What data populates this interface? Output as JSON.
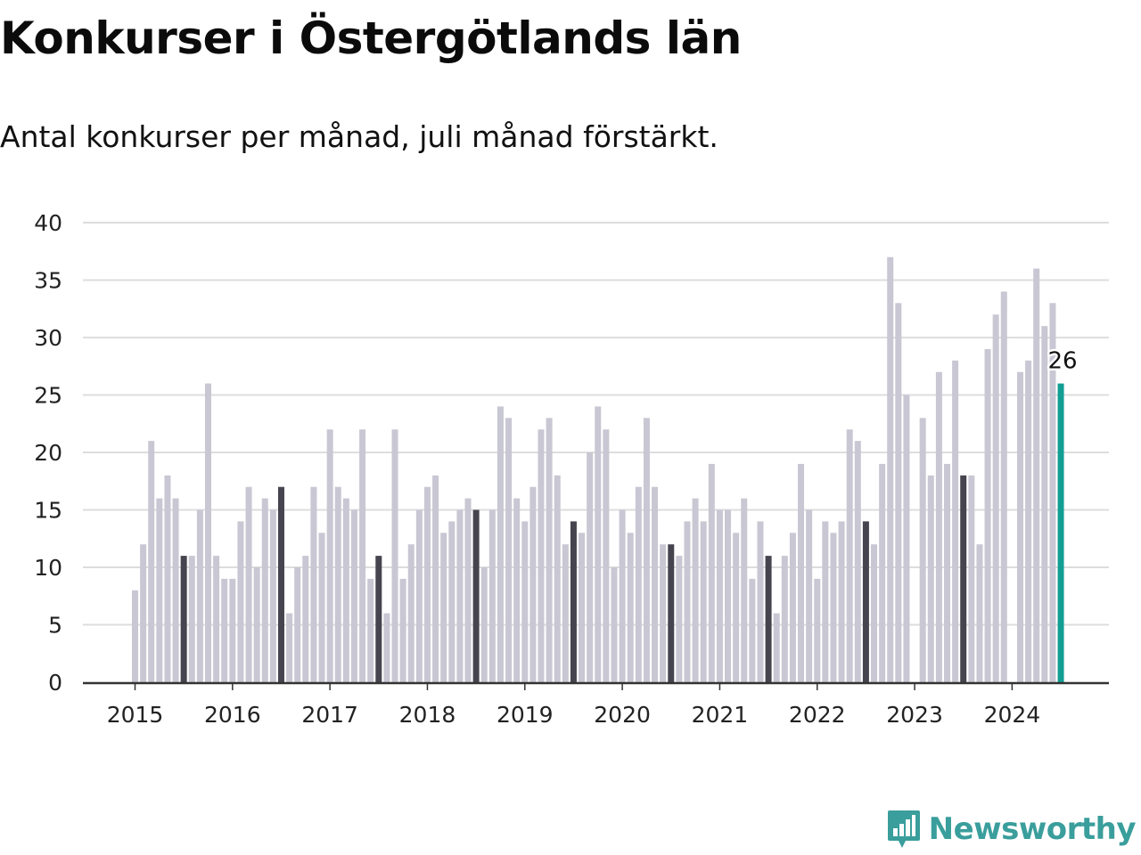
{
  "header": {
    "title": "Konkurser i Östergötlands län",
    "subtitle": "Antal konkurser per månad, juli månad förstärkt."
  },
  "brand": {
    "name": "Newsworthy",
    "icon": "chart-bubble-icon",
    "color": "#3a9e9c",
    "text_color": "#3a9e9c"
  },
  "colors": {
    "bar": "#c8c7d3",
    "july": "#46444f",
    "latest": "#129e93",
    "grid": "#dddddd",
    "axis": "#333333"
  },
  "chart_data": {
    "type": "bar",
    "title": "Konkurser i Östergötlands län",
    "subtitle": "Antal konkurser per månad, juli månad förstärkt.",
    "xlabel": "",
    "ylabel": "",
    "ylim": [
      0,
      40
    ],
    "yticks": [
      0,
      5,
      10,
      15,
      20,
      25,
      30,
      35,
      40
    ],
    "grid": true,
    "start": "2015-01",
    "end": "2024-07",
    "highlight_month": "juli",
    "x_tick_labels": [
      "2015",
      "2016",
      "2017",
      "2018",
      "2019",
      "2020",
      "2021",
      "2022",
      "2023",
      "2024"
    ],
    "series": [
      {
        "year": "2015",
        "values": [
          8,
          12,
          21,
          16,
          18,
          16,
          11,
          11,
          15,
          26,
          11,
          9
        ]
      },
      {
        "year": "2016",
        "values": [
          9,
          14,
          17,
          10,
          16,
          15,
          17,
          6,
          10,
          11,
          17,
          13
        ]
      },
      {
        "year": "2017",
        "values": [
          22,
          17,
          16,
          15,
          22,
          9,
          11,
          6,
          22,
          9,
          12,
          15
        ]
      },
      {
        "year": "2018",
        "values": [
          17,
          18,
          13,
          14,
          15,
          16,
          15,
          10,
          15,
          24,
          23,
          16
        ]
      },
      {
        "year": "2019",
        "values": [
          14,
          17,
          22,
          23,
          18,
          12,
          14,
          13,
          20,
          24,
          22,
          10
        ]
      },
      {
        "year": "2020",
        "values": [
          15,
          13,
          17,
          23,
          17,
          12,
          12,
          11,
          14,
          16,
          14,
          19
        ]
      },
      {
        "year": "2021",
        "values": [
          15,
          15,
          13,
          16,
          9,
          14,
          11,
          6,
          11,
          13,
          19,
          15
        ]
      },
      {
        "year": "2022",
        "values": [
          9,
          14,
          13,
          14,
          22,
          21,
          14,
          12,
          19,
          37,
          33,
          25
        ]
      },
      {
        "year": "2023",
        "values": [
          0,
          23,
          18,
          27,
          19,
          28,
          18,
          18,
          12,
          29,
          32,
          34
        ]
      },
      {
        "year": "2024",
        "values": [
          0,
          27,
          28,
          36,
          31,
          33,
          26
        ]
      }
    ],
    "annotations": [
      {
        "label": "26"
      }
    ]
  }
}
